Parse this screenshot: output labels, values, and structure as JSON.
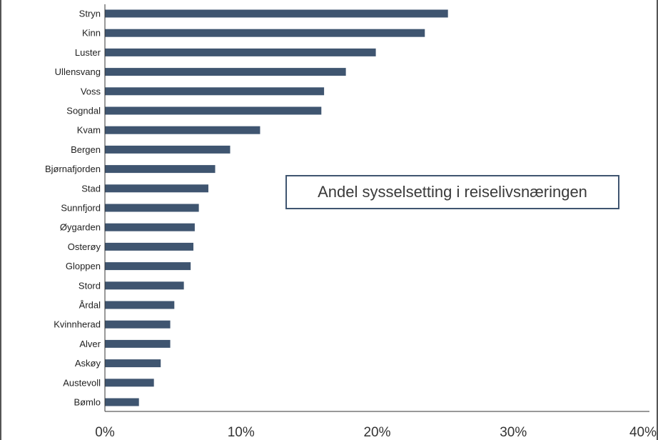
{
  "chart_data": {
    "type": "bar",
    "orientation": "horizontal",
    "title": "",
    "categories": [
      "Stryn",
      "Kinn",
      "Luster",
      "Ullensvang",
      "Voss",
      "Sogndal",
      "Kvam",
      "Bergen",
      "Bjørnafjorden",
      "Stad",
      "Sunnfjord",
      "Øygarden",
      "Osterøy",
      "Gloppen",
      "Stord",
      "Årdal",
      "Kvinnherad",
      "Alver",
      "Askøy",
      "Austevoll",
      "Bømlo"
    ],
    "series": [
      {
        "name": "Andel sysselsetting i reiselivsnæringen",
        "values": [
          25.2,
          23.5,
          19.9,
          17.7,
          16.1,
          15.9,
          11.4,
          9.2,
          8.1,
          7.6,
          6.9,
          6.6,
          6.5,
          6.3,
          5.8,
          5.1,
          4.8,
          4.8,
          4.1,
          3.6,
          2.5
        ]
      }
    ],
    "xlabel": "",
    "ylabel": "",
    "xlim": [
      0,
      40
    ],
    "xticks": [
      "0%",
      "10%",
      "20%",
      "30%",
      "40%"
    ],
    "grid": false,
    "legend_position": "center-right",
    "bar_color": "#3f5570"
  }
}
